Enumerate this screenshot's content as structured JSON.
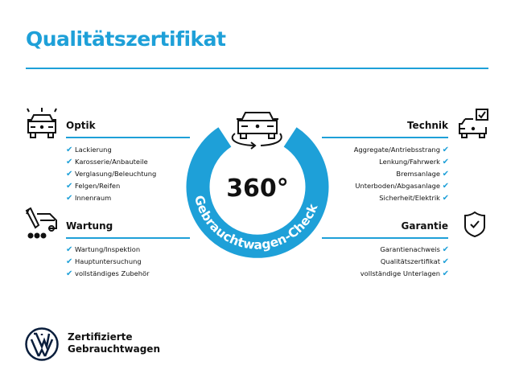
{
  "title": "Qualitätszertifikat",
  "accent_color": "#1ea0d8",
  "center": {
    "big": "360°",
    "ring_text": "Gebrauchtwagen-Check",
    "icon": "car-rotate-icon"
  },
  "sections": {
    "optik": {
      "heading": "Optik",
      "icon": "car-lights-icon",
      "items": [
        "Lackierung",
        "Karosserie/Anbauteile",
        "Verglasung/Beleuchtung",
        "Felgen/Reifen",
        "Innenraum"
      ]
    },
    "wartung": {
      "heading": "Wartung",
      "icon": "service-tool-icon",
      "items": [
        "Wartung/Inspektion",
        "Hauptuntersuchung",
        "vollständiges Zubehör"
      ]
    },
    "technik": {
      "heading": "Technik",
      "icon": "car-checkbox-icon",
      "items": [
        "Aggregate/Antriebsstrang",
        "Lenkung/Fahrwerk",
        "Bremsanlage",
        "Unterboden/Abgasanlage",
        "Sicherheit/Elektrik"
      ]
    },
    "garantie": {
      "heading": "Garantie",
      "icon": "shield-check-icon",
      "items": [
        "Garantienachweis",
        "Qualitätszertifikat",
        "vollständige Unterlagen"
      ]
    }
  },
  "check_mark": "✔",
  "footer": {
    "line1": "Zertifizierte",
    "line2": "Gebrauchtwagen",
    "logo": "vw-logo"
  }
}
